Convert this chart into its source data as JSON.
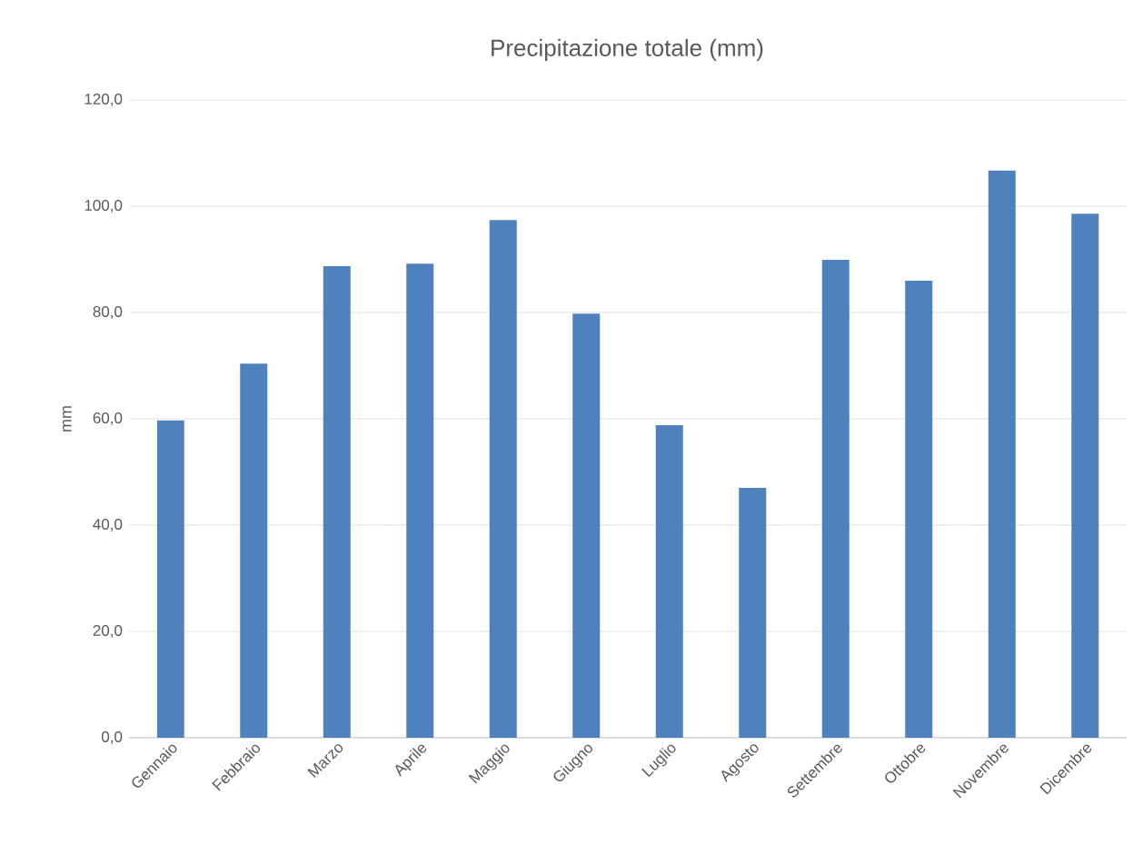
{
  "chart_data": {
    "type": "bar",
    "title": "Precipitazione totale (mm)",
    "ylabel": "mm",
    "categories": [
      "Gennaio",
      "Febbraio",
      "Marzo",
      "Aprile",
      "Maggio",
      "Giugno",
      "Luglio",
      "Agosto",
      "Settembre",
      "Ottobre",
      "Novembre",
      "Dicembre"
    ],
    "values": [
      59.7,
      70.4,
      88.7,
      89.2,
      97.4,
      79.8,
      58.8,
      47.0,
      89.9,
      86.0,
      106.7,
      98.6
    ],
    "color": "#4f81bd",
    "ylim": [
      0,
      120
    ],
    "yticks": [
      {
        "value": 0,
        "label": "0,0"
      },
      {
        "value": 20,
        "label": "20,0"
      },
      {
        "value": 40,
        "label": "40,0"
      },
      {
        "value": 60,
        "label": "60,0"
      },
      {
        "value": 80,
        "label": "80,0"
      },
      {
        "value": 100,
        "label": "100,0"
      },
      {
        "value": 120,
        "label": "120,0"
      }
    ],
    "grid": "y"
  }
}
